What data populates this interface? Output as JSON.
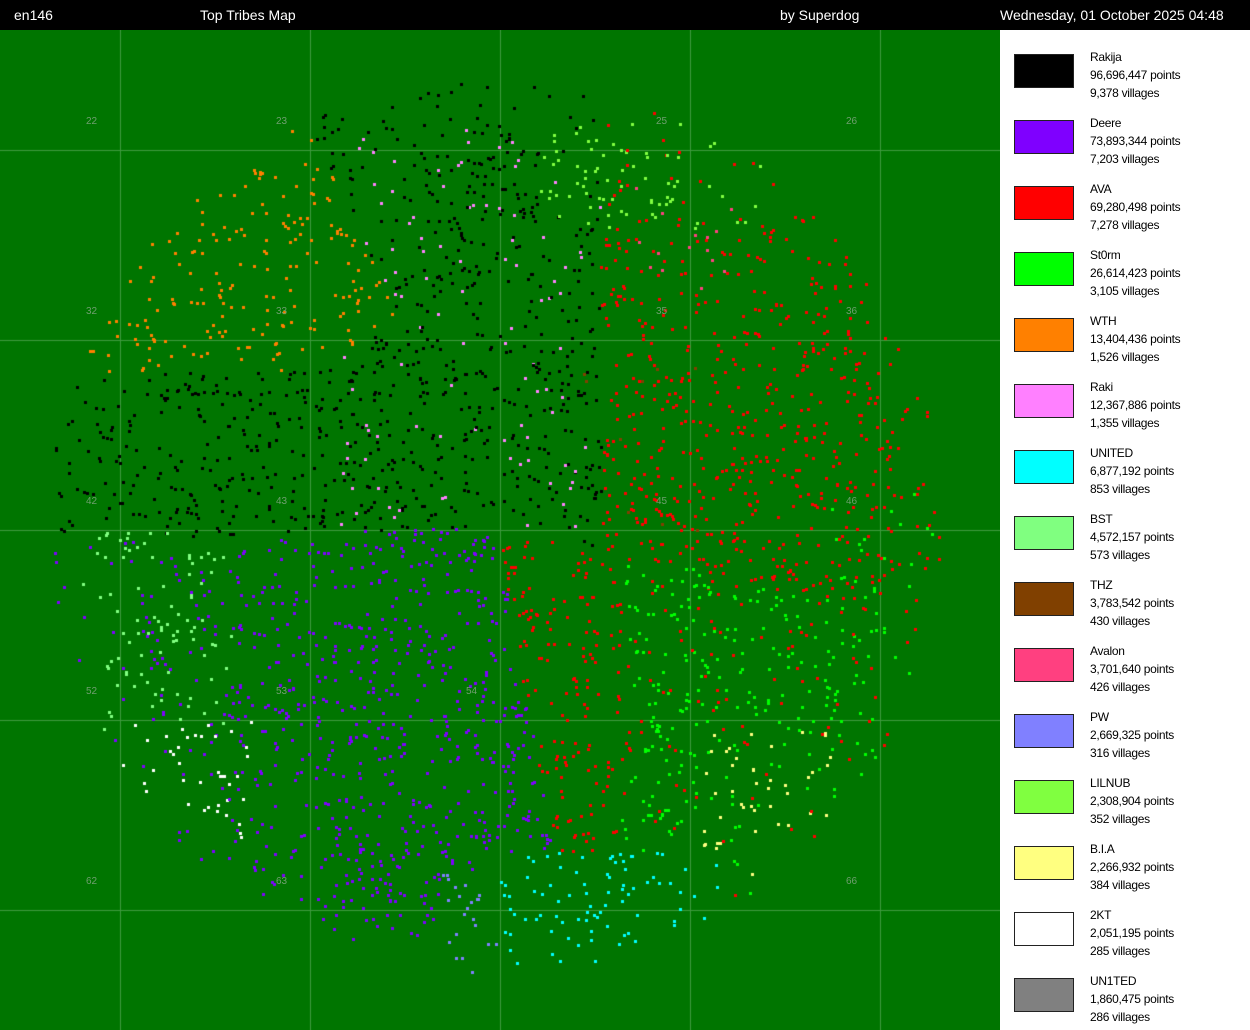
{
  "header": {
    "world": "en146",
    "title": "Top Tribes Map",
    "author": "by Superdog",
    "datetime": "Wednesday, 01 October 2025 04:48"
  },
  "map": {
    "background_color": "#007500",
    "grid_color": "#3f9a3f",
    "continent_labels": [
      "22",
      "23",
      "25",
      "26",
      "32",
      "33",
      "35",
      "36",
      "42",
      "43",
      "45",
      "46",
      "52",
      "53",
      "54",
      "62",
      "63",
      "66"
    ]
  },
  "tribes": [
    {
      "name": "Rakija",
      "points": "96,696,447 points",
      "villages": "9,378 villages",
      "color": "#000000"
    },
    {
      "name": "Deere",
      "points": "73,893,344 points",
      "villages": "7,203 villages",
      "color": "#7f00ff"
    },
    {
      "name": "AVA",
      "points": "69,280,498 points",
      "villages": "7,278 villages",
      "color": "#ff0000"
    },
    {
      "name": "St0rm",
      "points": "26,614,423 points",
      "villages": "3,105 villages",
      "color": "#00ff00"
    },
    {
      "name": "WTH",
      "points": "13,404,436 points",
      "villages": "1,526 villages",
      "color": "#ff8000"
    },
    {
      "name": "Raki",
      "points": "12,367,886 points",
      "villages": "1,355 villages",
      "color": "#ff80ff"
    },
    {
      "name": "UNITED",
      "points": "6,877,192 points",
      "villages": "853 villages",
      "color": "#00ffff"
    },
    {
      "name": "BST",
      "points": "4,572,157 points",
      "villages": "573 villages",
      "color": "#80ff80"
    },
    {
      "name": "THZ",
      "points": "3,783,542 points",
      "villages": "430 villages",
      "color": "#804000"
    },
    {
      "name": "Avalon",
      "points": "3,701,640 points",
      "villages": "426 villages",
      "color": "#ff4080"
    },
    {
      "name": "PW",
      "points": "2,669,325 points",
      "villages": "316 villages",
      "color": "#8080ff"
    },
    {
      "name": "LILNUB",
      "points": "2,308,904 points",
      "villages": "352 villages",
      "color": "#80ff40"
    },
    {
      "name": "B.I.A",
      "points": "2,266,932 points",
      "villages": "384 villages",
      "color": "#ffff80"
    },
    {
      "name": "2KT",
      "points": "2,051,195 points",
      "villages": "285 villages",
      "color": "#ffffff"
    },
    {
      "name": "UN1TED",
      "points": "1,860,475 points",
      "villages": "286 villages",
      "color": "#808080"
    }
  ]
}
